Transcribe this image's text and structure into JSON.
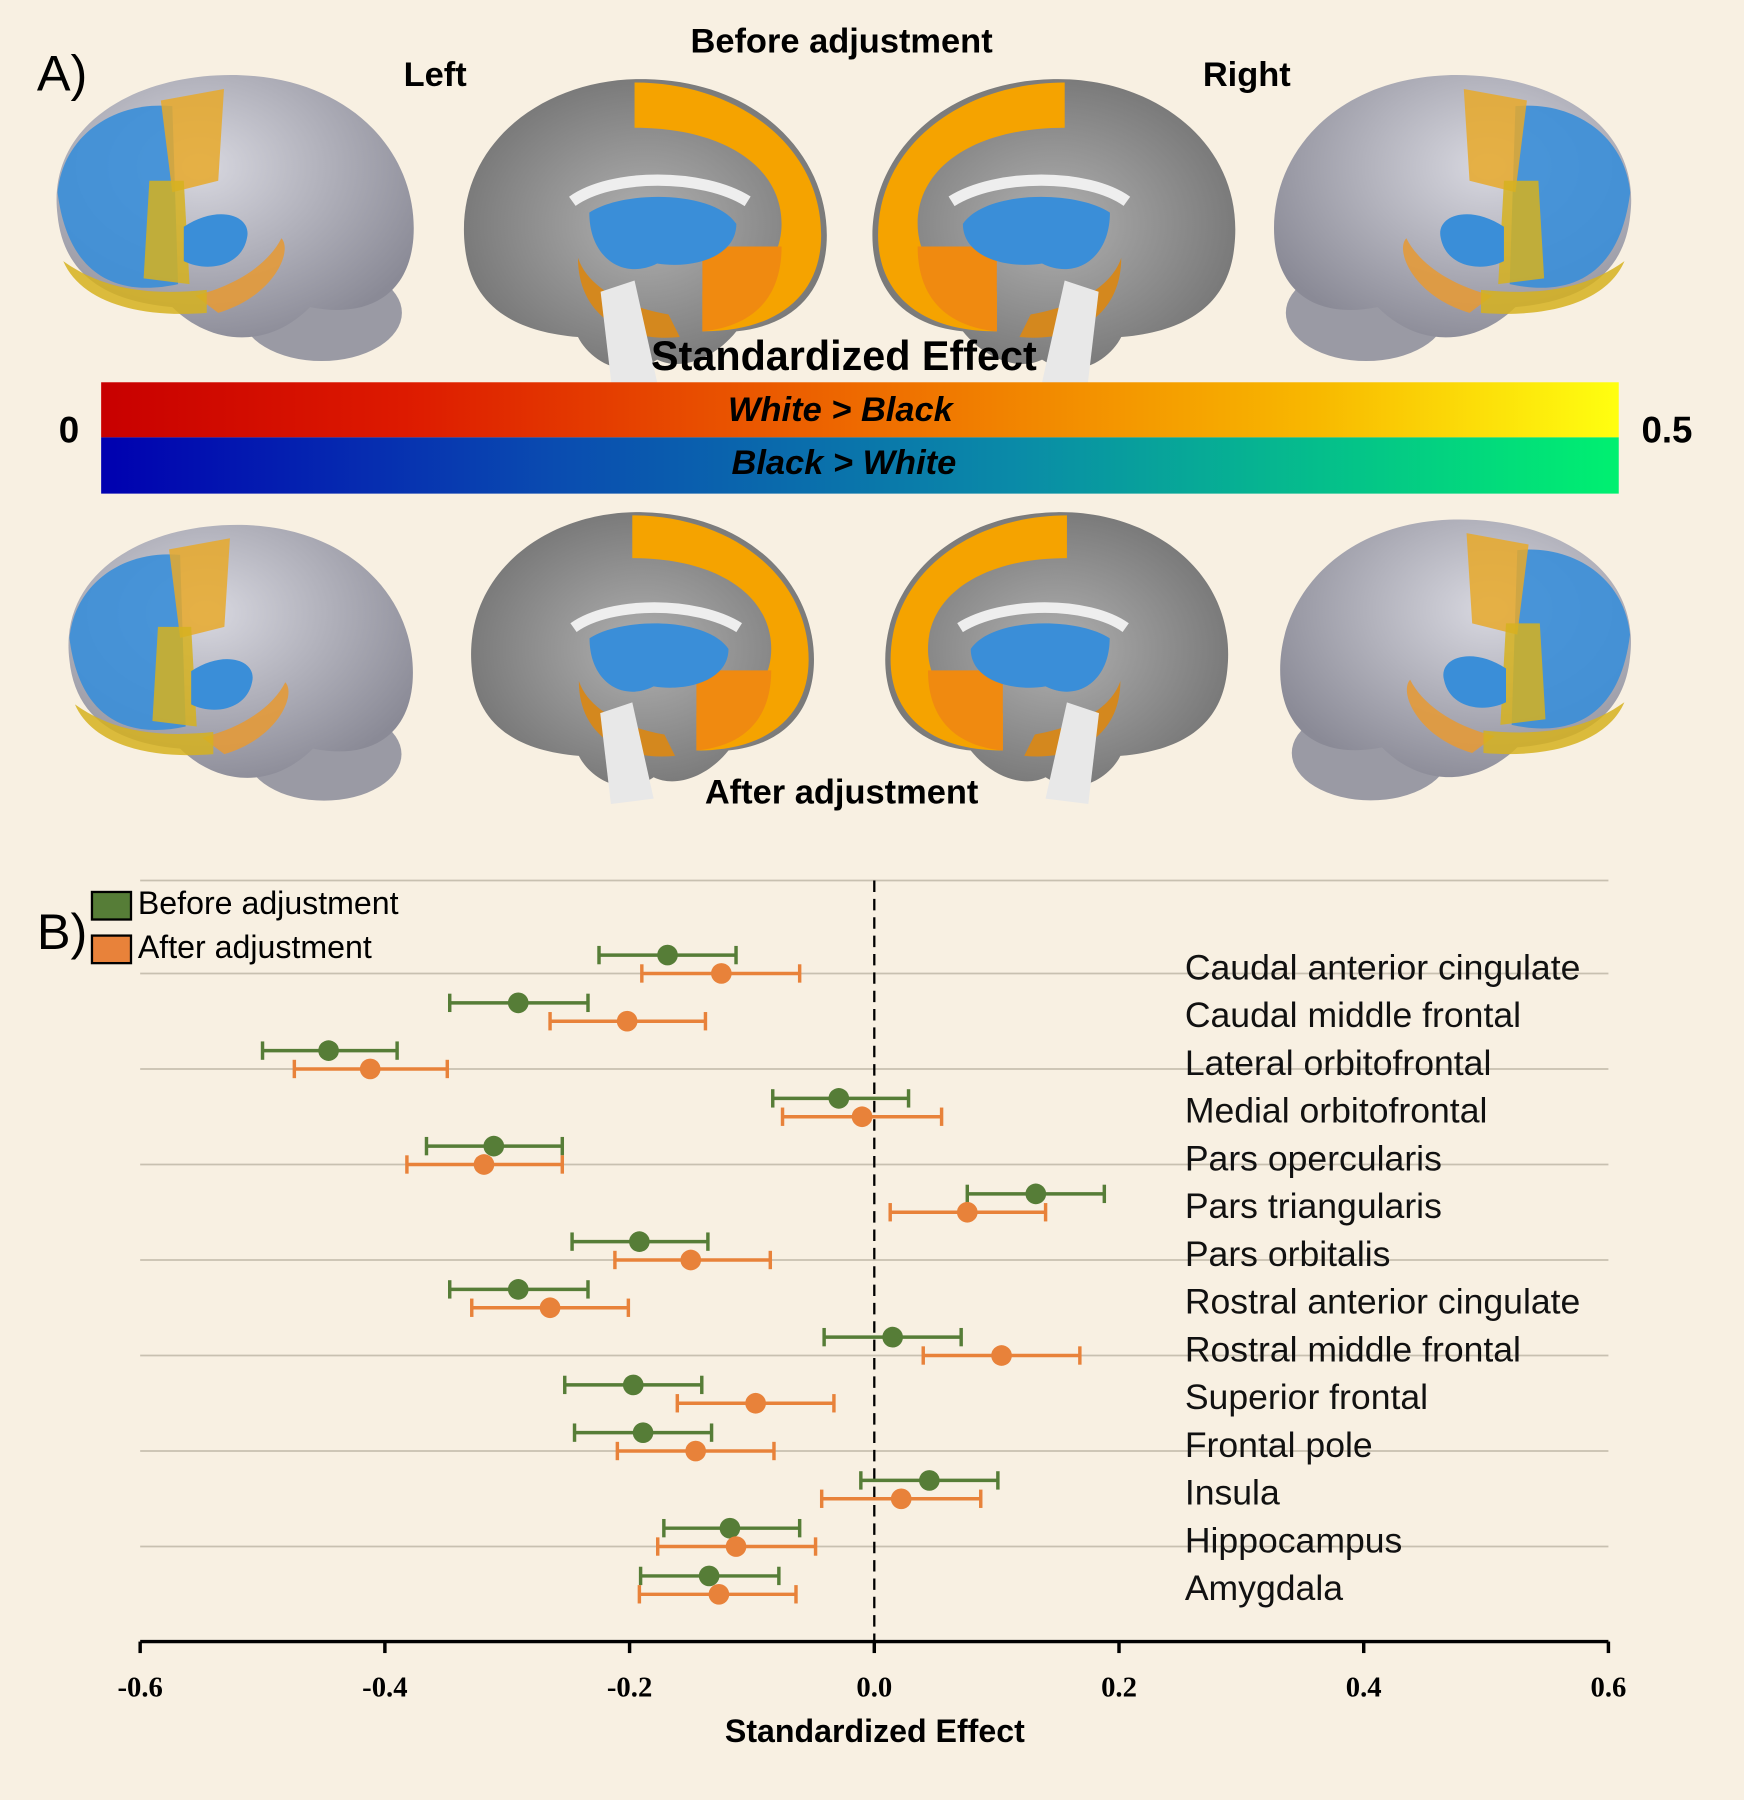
{
  "panel_a": {
    "label": "A)",
    "top_title": "Before adjustment",
    "left": "Left",
    "right": "Right",
    "colorbar_title": "Standardized Effect",
    "colorbar_upper": "White > Black",
    "colorbar_lower": "Black > White",
    "colorbar_lim": [
      0,
      0.5
    ],
    "bottom_title": "After adjustment"
  },
  "panel_b_label": "B)",
  "chart_data": {
    "type": "errorbar",
    "xlabel": "Standardized Effect",
    "categories": [
      "Caudal anterior cingulate",
      "Caudal middle frontal",
      "Lateral orbitofrontal",
      "Medial orbitofrontal",
      "Pars opercularis",
      "Pars triangularis",
      "Pars orbitalis",
      "Rostral anterior cingulate",
      "Rostral middle frontal",
      "Superior frontal",
      "Frontal pole",
      "Insula",
      "Hippocampus",
      "Amygdala"
    ],
    "series": [
      {
        "name": "Before adjustment",
        "color": "#567d37",
        "values": [
          -0.169,
          -0.291,
          -0.446,
          -0.029,
          -0.311,
          0.132,
          -0.192,
          -0.291,
          0.015,
          -0.197,
          -0.189,
          0.045,
          -0.118,
          -0.135
        ],
        "low": [
          -0.225,
          -0.347,
          -0.5,
          -0.083,
          -0.366,
          0.076,
          -0.247,
          -0.347,
          -0.041,
          -0.253,
          -0.245,
          -0.011,
          -0.172,
          -0.191
        ],
        "high": [
          -0.113,
          -0.234,
          -0.39,
          0.028,
          -0.255,
          0.188,
          -0.136,
          -0.234,
          0.071,
          -0.141,
          -0.133,
          0.101,
          -0.061,
          -0.078
        ]
      },
      {
        "name": "After adjustment",
        "color": "#e8823a",
        "values": [
          -0.125,
          -0.202,
          -0.412,
          -0.01,
          -0.319,
          0.076,
          -0.15,
          -0.265,
          0.104,
          -0.097,
          -0.146,
          0.022,
          -0.113,
          -0.127
        ],
        "low": [
          -0.19,
          -0.265,
          -0.474,
          -0.075,
          -0.382,
          0.013,
          -0.212,
          -0.329,
          0.04,
          -0.161,
          -0.21,
          -0.043,
          -0.177,
          -0.192
        ],
        "high": [
          -0.061,
          -0.138,
          -0.349,
          0.055,
          -0.255,
          0.14,
          -0.085,
          -0.201,
          0.168,
          -0.033,
          -0.082,
          0.087,
          -0.048,
          -0.064
        ]
      }
    ],
    "xlim": [
      -0.6,
      0.6
    ],
    "xticks": [
      -0.6,
      -0.4,
      -0.2,
      {
        "value": 0,
        "label": "0.0"
      },
      0.2,
      0.4,
      0.6
    ],
    "reference_line": 0,
    "legend": "upper left"
  }
}
